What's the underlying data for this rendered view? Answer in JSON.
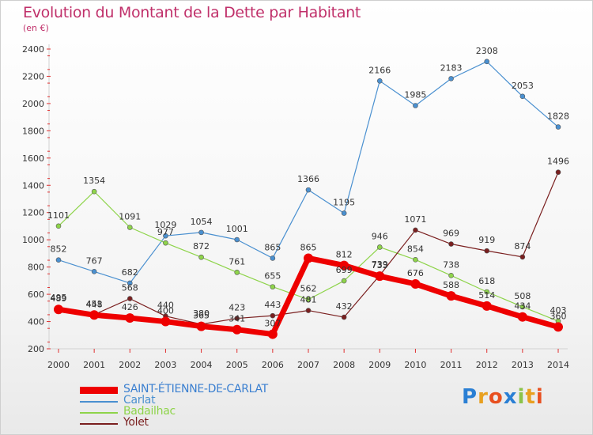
{
  "header": {
    "title": "Evolution du Montant de la Dette par Habitant",
    "subtitle": "(en €)"
  },
  "logo": {
    "letters": [
      "P",
      "r",
      "o",
      "x",
      "i",
      "t",
      "i"
    ],
    "colors": [
      "#2a7fd4",
      "#e8a020",
      "#e85020",
      "#2a7fd4",
      "#8bc34a",
      "#e8a020",
      "#e85020"
    ]
  },
  "chart_data": {
    "type": "line",
    "title": "Evolution du Montant de la Dette par Habitant",
    "subtitle": "(en €)",
    "xlabel": "",
    "ylabel": "",
    "x": [
      "2000",
      "2001",
      "2002",
      "2003",
      "2004",
      "2005",
      "2006",
      "2007",
      "2008",
      "2009",
      "2010",
      "2011",
      "2012",
      "2013",
      "2014"
    ],
    "ylim": [
      200,
      2400
    ],
    "yticks": [
      200,
      400,
      600,
      800,
      1000,
      1200,
      1400,
      1600,
      1800,
      2000,
      2200,
      2400
    ],
    "grid": false,
    "legend_position": "bottom-left",
    "series": [
      {
        "name": "SAINT-ÉTIENNE-DE-CARLAT",
        "color": "#ee0000",
        "emphasis": true,
        "values": [
          489,
          448,
          426,
          400,
          365,
          341,
          307,
          865,
          812,
          733,
          676,
          588,
          514,
          434,
          360
        ],
        "labels": [
          "489",
          "448",
          "426",
          "400",
          "365",
          "341",
          "307",
          "865",
          "812",
          "733",
          "676",
          "588",
          "514",
          "434",
          "360"
        ]
      },
      {
        "name": "Carlat",
        "color": "#4a90d0",
        "emphasis": false,
        "values": [
          852,
          767,
          682,
          1029,
          1054,
          1001,
          865,
          1366,
          1195,
          2166,
          1985,
          2183,
          2308,
          2053,
          1828
        ],
        "labels": [
          "852",
          "767",
          "682",
          "1029",
          "1054",
          "1001",
          "865",
          "1366",
          "1195",
          "2166",
          "1985",
          "2183",
          "2308",
          "2053",
          "1828"
        ]
      },
      {
        "name": "Badailhac",
        "color": "#8ed44a",
        "emphasis": false,
        "values": [
          1101,
          1354,
          1091,
          977,
          872,
          761,
          655,
          562,
          699,
          946,
          854,
          738,
          618,
          508,
          403
        ],
        "labels": [
          "1101",
          "1354",
          "1091",
          "977",
          "872",
          "761",
          "655",
          "562",
          "699",
          "946",
          "854",
          "738",
          "618",
          "508",
          "403"
        ]
      },
      {
        "name": "Yolet",
        "color": "#7a1f1f",
        "emphasis": false,
        "values": [
          495,
          451,
          568,
          440,
          380,
          423,
          443,
          481,
          432,
          739,
          1071,
          969,
          919,
          874,
          1496
        ],
        "labels": [
          "495",
          "451",
          "568",
          "440",
          "380",
          "423",
          "443",
          "481",
          "432",
          "739",
          "1071",
          "969",
          "919",
          "874",
          "1496"
        ]
      }
    ]
  }
}
